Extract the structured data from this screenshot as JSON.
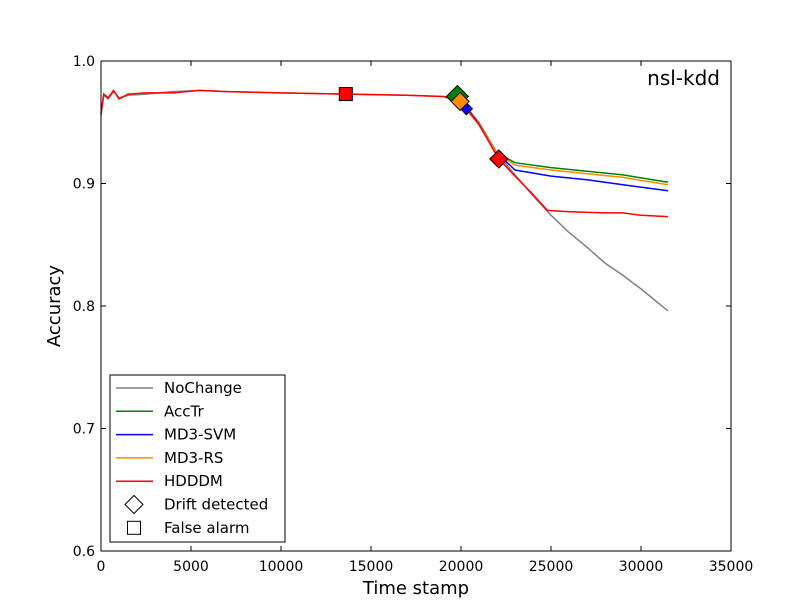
{
  "chart_data": {
    "type": "line",
    "annotation": "nsl-kdd",
    "xlabel": "Time stamp",
    "ylabel": "Accuracy",
    "xlim": [
      0,
      35000
    ],
    "ylim": [
      0.6,
      1.0
    ],
    "xticks": [
      0,
      5000,
      10000,
      15000,
      20000,
      25000,
      30000,
      35000
    ],
    "yticks": [
      0.6,
      0.7,
      0.8,
      0.9,
      1.0
    ],
    "xtick_labels": [
      "0",
      "5000",
      "10000",
      "15000",
      "20000",
      "25000",
      "30000",
      "35000"
    ],
    "ytick_labels": [
      "0.6",
      "0.7",
      "0.8",
      "0.9",
      "1.0"
    ],
    "grid": false,
    "legend_position": "bottom-left",
    "series": [
      {
        "name": "NoChange",
        "color": "#808080",
        "points": [
          [
            0,
            0.955
          ],
          [
            150,
            0.972
          ],
          [
            400,
            0.969
          ],
          [
            700,
            0.975
          ],
          [
            1000,
            0.97
          ],
          [
            1500,
            0.972
          ],
          [
            2500,
            0.973
          ],
          [
            4000,
            0.975
          ],
          [
            5500,
            0.976
          ],
          [
            7000,
            0.975
          ],
          [
            10000,
            0.974
          ],
          [
            13600,
            0.973
          ],
          [
            17000,
            0.972
          ],
          [
            19000,
            0.971
          ],
          [
            20000,
            0.968
          ],
          [
            21000,
            0.95
          ],
          [
            22000,
            0.925
          ],
          [
            23000,
            0.907
          ],
          [
            24000,
            0.89
          ],
          [
            25000,
            0.874
          ],
          [
            26000,
            0.86
          ],
          [
            27000,
            0.848
          ],
          [
            28000,
            0.835
          ],
          [
            29000,
            0.825
          ],
          [
            30000,
            0.814
          ],
          [
            31500,
            0.796
          ]
        ]
      },
      {
        "name": "AccTr",
        "color": "#008000",
        "points": [
          [
            19900,
            0.97
          ],
          [
            21000,
            0.948
          ],
          [
            22000,
            0.925
          ],
          [
            23000,
            0.917
          ],
          [
            25000,
            0.913
          ],
          [
            27000,
            0.91
          ],
          [
            29000,
            0.907
          ],
          [
            31500,
            0.901
          ]
        ]
      },
      {
        "name": "MD3-SVM",
        "color": "#0000ff",
        "points": [
          [
            20300,
            0.962
          ],
          [
            21000,
            0.948
          ],
          [
            22000,
            0.925
          ],
          [
            23000,
            0.911
          ],
          [
            25000,
            0.906
          ],
          [
            27000,
            0.903
          ],
          [
            29000,
            0.899
          ],
          [
            31500,
            0.894
          ]
        ]
      },
      {
        "name": "MD3-RS",
        "color": "#ff8c00",
        "points": [
          [
            19900,
            0.967
          ],
          [
            21000,
            0.948
          ],
          [
            22000,
            0.925
          ],
          [
            23000,
            0.915
          ],
          [
            25000,
            0.911
          ],
          [
            27000,
            0.908
          ],
          [
            29000,
            0.905
          ],
          [
            31500,
            0.899
          ]
        ]
      },
      {
        "name": "HDDDM",
        "color": "#ff0000",
        "points": [
          [
            0,
            0.957
          ],
          [
            150,
            0.973
          ],
          [
            400,
            0.97
          ],
          [
            700,
            0.976
          ],
          [
            1000,
            0.969
          ],
          [
            1500,
            0.973
          ],
          [
            2500,
            0.974
          ],
          [
            4000,
            0.974
          ],
          [
            5500,
            0.976
          ],
          [
            7000,
            0.975
          ],
          [
            10000,
            0.974
          ],
          [
            13600,
            0.973
          ],
          [
            17000,
            0.972
          ],
          [
            19000,
            0.971
          ],
          [
            20000,
            0.967
          ],
          [
            21000,
            0.948
          ],
          [
            22100,
            0.92
          ],
          [
            23000,
            0.906
          ],
          [
            24000,
            0.891
          ],
          [
            24800,
            0.878
          ],
          [
            26000,
            0.877
          ],
          [
            28000,
            0.876
          ],
          [
            29000,
            0.876
          ],
          [
            30000,
            0.874
          ],
          [
            31500,
            0.873
          ]
        ]
      }
    ],
    "markers": [
      {
        "type": "false_alarm",
        "series": "HDDDM",
        "x": 13600,
        "y": 0.973,
        "color": "#ff0000"
      },
      {
        "type": "drift_detected",
        "series": "AccTr",
        "x": 19800,
        "y": 0.971,
        "color": "#008000"
      },
      {
        "type": "drift_detected",
        "series": "MD3-SVM",
        "x": 20300,
        "y": 0.961,
        "color": "#0000ff"
      },
      {
        "type": "drift_detected",
        "series": "MD3-RS",
        "x": 19950,
        "y": 0.967,
        "color": "#ff8c00"
      },
      {
        "type": "drift_detected",
        "series": "HDDDM",
        "x": 22100,
        "y": 0.92,
        "color": "#ff0000"
      }
    ],
    "legend": [
      {
        "label": "NoChange",
        "kind": "line",
        "color": "#808080"
      },
      {
        "label": "AccTr",
        "kind": "line",
        "color": "#008000"
      },
      {
        "label": "MD3-SVM",
        "kind": "line",
        "color": "#0000ff"
      },
      {
        "label": "MD3-RS",
        "kind": "line",
        "color": "#ff8c00"
      },
      {
        "label": "HDDDM",
        "kind": "line",
        "color": "#ff0000"
      },
      {
        "label": "Drift detected",
        "kind": "diamond",
        "color": "#000000"
      },
      {
        "label": "False alarm",
        "kind": "square",
        "color": "#000000"
      }
    ]
  }
}
